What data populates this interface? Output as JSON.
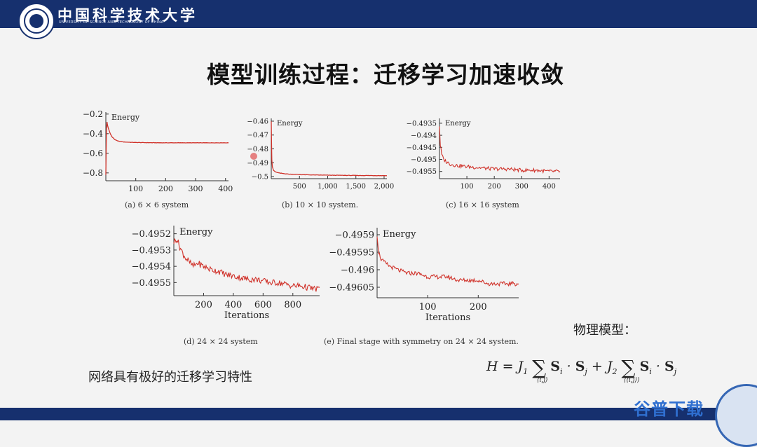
{
  "header": {
    "school_name": "中国科学技术大学",
    "school_name_en": "UNIVERSITY OF SCIENCE AND TECHNOLOGY OF CHINA"
  },
  "slide": {
    "title": "模型训练过程：迁移学习加速收敛",
    "note_left": "网络具有极好的迁移学习特性",
    "note_right": "物理模型：",
    "formula": {
      "lhs": "H = J",
      "j1_sub": "1",
      "sum1_sub": "⟨i,j⟩",
      "term1": "S",
      "term1_sub_i": "i",
      "dot": "·",
      "term1_sub_j": "j",
      "plus_j2": "+ J",
      "j2_sub": "2",
      "sum2_sub": "⟨⟨i,j⟩⟩",
      "term2_sub_i": "i",
      "term2_sub_j": "j"
    }
  },
  "watermark": "谷普下载",
  "colors": {
    "header_bar": "#16306e",
    "curve": "#d0322a",
    "watermark": "#2f6fd0"
  },
  "chart_data": [
    {
      "type": "line",
      "caption": "(a) 6 × 6 system",
      "ylabel_inline": "Energy",
      "xlabel": "",
      "xlim": [
        0,
        410
      ],
      "ylim": [
        -0.88,
        -0.18
      ],
      "xticks": [
        100,
        200,
        300,
        400
      ],
      "xtick_labels": [
        "100",
        "200",
        "300",
        "400"
      ],
      "yticks": [
        -0.2,
        -0.4,
        -0.6,
        -0.8
      ],
      "ytick_labels": [
        "−0.2",
        "−0.4",
        "−0.6",
        "−0.8"
      ],
      "series": [
        {
          "x": [
            0,
            2,
            4,
            6,
            10,
            15,
            20,
            30,
            40,
            60,
            100,
            150,
            200,
            300,
            410
          ],
          "y": [
            -0.82,
            -0.35,
            -0.28,
            -0.32,
            -0.36,
            -0.4,
            -0.43,
            -0.46,
            -0.475,
            -0.485,
            -0.49,
            -0.492,
            -0.493,
            -0.493,
            -0.493
          ]
        }
      ]
    },
    {
      "type": "line",
      "caption": "(b) 10 × 10 system.",
      "ylabel_inline": "Energy",
      "xlabel": "",
      "xlim": [
        0,
        2050
      ],
      "ylim": [
        -0.5015,
        -0.458
      ],
      "xticks": [
        500,
        1000,
        1500,
        2000
      ],
      "xtick_labels": [
        "500",
        "1,000",
        "1,500",
        "2,000"
      ],
      "yticks": [
        -0.46,
        -0.47,
        -0.48,
        -0.49,
        -0.5
      ],
      "ytick_labels": [
        "−0.46",
        "−0.47",
        "−0.48",
        "−0.49",
        "−0.5"
      ],
      "series": [
        {
          "x": [
            0,
            5,
            10,
            20,
            40,
            80,
            150,
            300,
            600,
            1000,
            1500,
            2050
          ],
          "y": [
            -0.46,
            -0.476,
            -0.488,
            -0.493,
            -0.4955,
            -0.4968,
            -0.4975,
            -0.4982,
            -0.4987,
            -0.499,
            -0.4992,
            -0.4993
          ]
        }
      ]
    },
    {
      "type": "line",
      "caption": "(c) 16 × 16 system",
      "ylabel_inline": "Energy",
      "xlabel": "",
      "xlim": [
        0,
        440
      ],
      "ylim": [
        -0.4958,
        -0.4933
      ],
      "xticks": [
        100,
        200,
        300,
        400
      ],
      "xtick_labels": [
        "100",
        "200",
        "300",
        "400"
      ],
      "yticks": [
        -0.4935,
        -0.494,
        -0.4945,
        -0.495,
        -0.4955
      ],
      "ytick_labels": [
        "−0.4935",
        "−0.494",
        "−0.4945",
        "−0.495",
        "−0.4955"
      ],
      "series": [
        {
          "x": [
            0,
            3,
            8,
            15,
            25,
            40,
            60,
            100,
            150,
            200,
            250,
            300,
            350,
            400,
            440
          ],
          "y": [
            -0.4936,
            -0.4944,
            -0.4948,
            -0.495,
            -0.4951,
            -0.4952,
            -0.49525,
            -0.4953,
            -0.49535,
            -0.4954,
            -0.4954,
            -0.49545,
            -0.49545,
            -0.4955,
            -0.4955
          ]
        }
      ]
    },
    {
      "type": "line",
      "caption": "(d) 24 × 24 system",
      "ylabel_inline": "Energy",
      "xlabel": "Iterations",
      "xlim": [
        0,
        980
      ],
      "ylim": [
        -0.49558,
        -0.49515
      ],
      "xticks": [
        200,
        400,
        600,
        800
      ],
      "xtick_labels": [
        "200",
        "400",
        "600",
        "800"
      ],
      "yticks": [
        -0.4952,
        -0.4953,
        -0.4954,
        -0.4955
      ],
      "ytick_labels": [
        "−0.4952",
        "−0.4953",
        "−0.4954",
        "−0.4955"
      ],
      "series": [
        {
          "x": [
            0,
            20,
            40,
            60,
            80,
            100,
            130,
            160,
            200,
            250,
            300,
            350,
            400,
            450,
            500,
            550,
            600,
            650,
            700,
            750,
            800,
            850,
            900,
            950,
            980
          ],
          "y": [
            -0.49525,
            -0.49523,
            -0.49528,
            -0.49532,
            -0.49535,
            -0.49537,
            -0.4954,
            -0.49538,
            -0.4954,
            -0.49542,
            -0.49543,
            -0.49545,
            -0.49546,
            -0.49547,
            -0.49548,
            -0.49548,
            -0.49549,
            -0.4955,
            -0.4955,
            -0.49551,
            -0.49552,
            -0.49552,
            -0.49553,
            -0.49554,
            -0.49553
          ]
        }
      ]
    },
    {
      "type": "line",
      "caption": "(e) Final stage with symmetry on 24 × 24 system.",
      "ylabel_inline": "Energy",
      "xlabel": "Iterations",
      "xlim": [
        0,
        280
      ],
      "ylim": [
        -0.49608,
        -0.49588
      ],
      "xticks": [
        100,
        200
      ],
      "xtick_labels": [
        "100",
        "200"
      ],
      "yticks": [
        -0.4959,
        -0.49595,
        -0.496,
        -0.49605
      ],
      "ytick_labels": [
        "−0.4959",
        "−0.49595",
        "−0.496",
        "−0.49605"
      ],
      "series": [
        {
          "x": [
            0,
            3,
            8,
            15,
            25,
            40,
            60,
            80,
            100,
            120,
            140,
            160,
            180,
            200,
            220,
            240,
            260,
            280
          ],
          "y": [
            -0.4959,
            -0.49595,
            -0.49597,
            -0.49598,
            -0.49599,
            -0.496,
            -0.49601,
            -0.49601,
            -0.49602,
            -0.49602,
            -0.49602,
            -0.49603,
            -0.49603,
            -0.49603,
            -0.49604,
            -0.49604,
            -0.49604,
            -0.49604
          ]
        }
      ]
    }
  ]
}
